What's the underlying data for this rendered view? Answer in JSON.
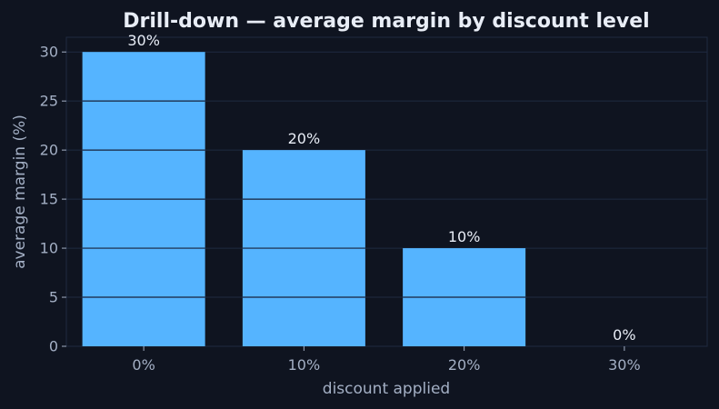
{
  "chart_data": {
    "type": "bar",
    "title": "Drill-down — average margin by discount level",
    "xlabel": "discount applied",
    "ylabel": "average margin (%)",
    "categories": [
      "0%",
      "10%",
      "20%",
      "30%"
    ],
    "values": [
      30,
      20,
      10,
      0
    ],
    "data_labels": [
      "30%",
      "20%",
      "10%",
      "0%"
    ],
    "ylim": [
      0,
      31.5
    ],
    "yticks": [
      0,
      5,
      10,
      15,
      20,
      25,
      30
    ],
    "grid": true,
    "legend": "none",
    "colors": {
      "background": "#0f1420",
      "bar": "#55b4ff",
      "grid": "#1f2a40",
      "text": "#e8edf6",
      "muted": "#a3afc4"
    }
  }
}
